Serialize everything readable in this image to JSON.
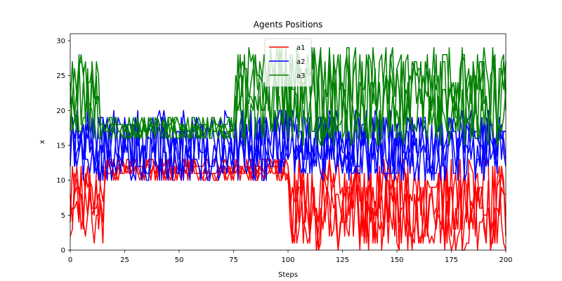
{
  "chart_data": {
    "type": "line",
    "title": "Agents Positions",
    "xlabel": "Steps",
    "ylabel": "x",
    "xlim": [
      0,
      200
    ],
    "ylim": [
      0,
      31
    ],
    "xticks": [
      0,
      25,
      50,
      75,
      100,
      125,
      150,
      175,
      200
    ],
    "yticks": [
      0,
      5,
      10,
      15,
      20,
      25,
      30
    ],
    "grid": false,
    "legend_position": "upper center",
    "series": [
      {
        "name": "a1",
        "color": "#ff0000",
        "segments": [
          {
            "x": [
              0,
              15
            ],
            "range": [
              1,
              12
            ]
          },
          {
            "x": [
              15,
              100
            ],
            "range": [
              10,
              13
            ]
          },
          {
            "x": [
              100,
              200
            ],
            "range": [
              0,
              13
            ]
          }
        ]
      },
      {
        "name": "a2",
        "color": "#0000ff",
        "segments": [
          {
            "x": [
              0,
              200
            ],
            "range": [
              10,
              20
            ]
          }
        ]
      },
      {
        "name": "a3",
        "color": "#008000",
        "segments": [
          {
            "x": [
              0,
              13
            ],
            "range": [
              16,
              28
            ]
          },
          {
            "x": [
              13,
              75
            ],
            "range": [
              16,
              19
            ]
          },
          {
            "x": [
              75,
              200
            ],
            "range": [
              15,
              29
            ]
          }
        ]
      }
    ]
  }
}
